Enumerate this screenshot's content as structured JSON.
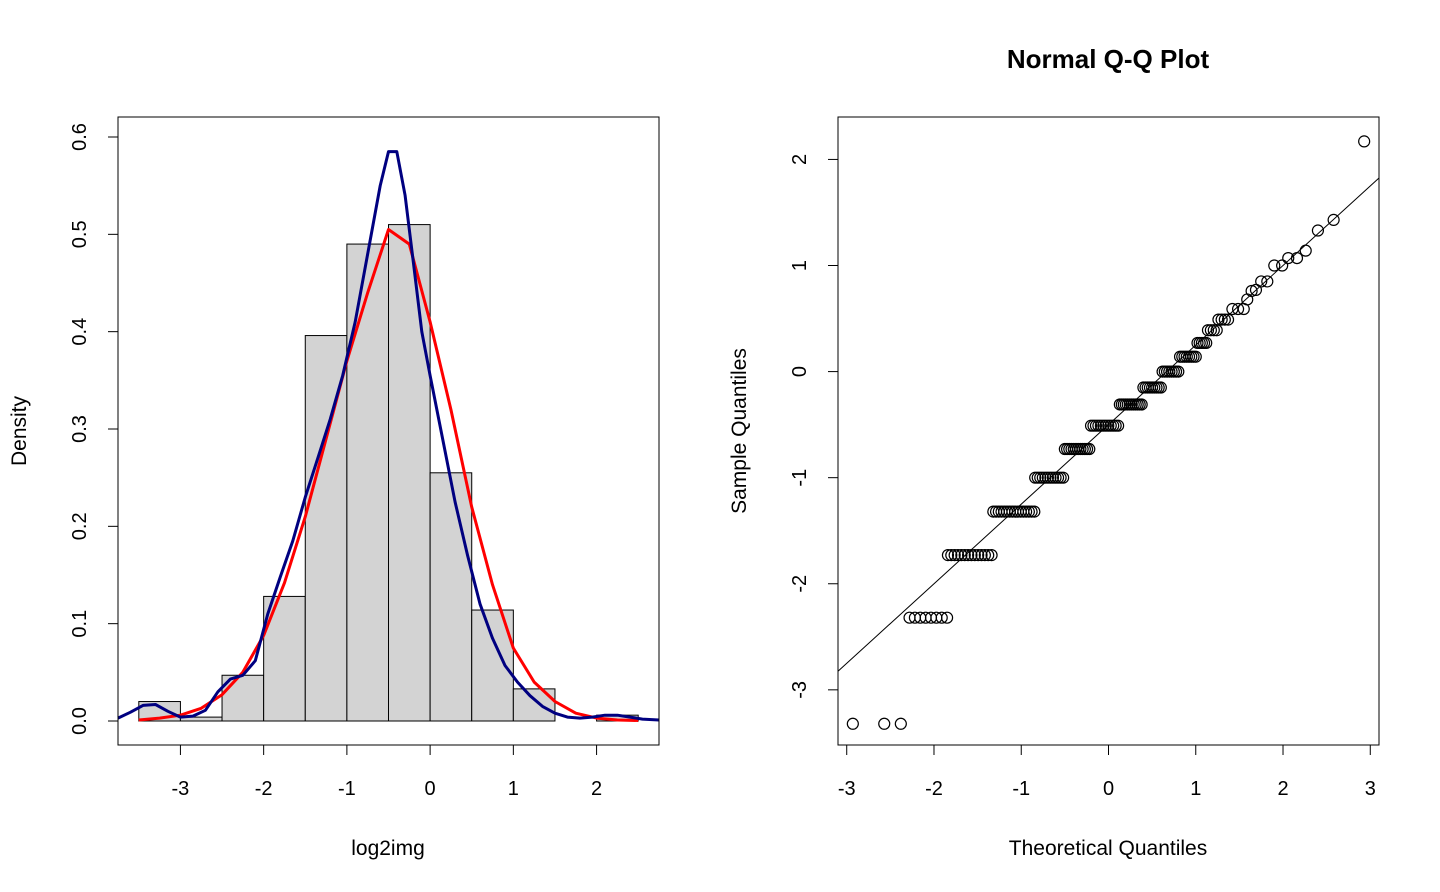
{
  "chart_data": [
    {
      "type": "bar",
      "subtype": "histogram-with-density",
      "title": "",
      "xlabel": "log2img",
      "ylabel": "Density",
      "xlim": [
        -3.75,
        2.75
      ],
      "ylim": [
        0,
        0.6
      ],
      "x_ticks": [
        -3,
        -2,
        -1,
        0,
        1,
        2
      ],
      "x_tick_labels": [
        "-3",
        "-2",
        "-1",
        "0",
        "1",
        "2"
      ],
      "y_ticks": [
        0,
        0.1,
        0.2,
        0.3,
        0.4,
        0.5,
        0.6
      ],
      "y_tick_labels": [
        "0.0",
        "0.1",
        "0.2",
        "0.3",
        "0.4",
        "0.5",
        "0.6"
      ],
      "bin_edges": [
        -3.5,
        -3.0,
        -2.5,
        -2.0,
        -1.5,
        -1.0,
        -0.5,
        0.0,
        0.5,
        1.0,
        1.5,
        2.0,
        2.5
      ],
      "values": [
        0.02,
        0.004,
        0.047,
        0.128,
        0.396,
        0.49,
        0.51,
        0.255,
        0.114,
        0.033,
        0.0,
        0.006
      ],
      "bar_color": "#d3d3d3",
      "grid": false,
      "series": [
        {
          "kind": "line",
          "color": "#ff0000",
          "x": [
            -3.5,
            -3.25,
            -3.0,
            -2.75,
            -2.5,
            -2.25,
            -2.0,
            -1.75,
            -1.5,
            -1.25,
            -1.0,
            -0.75,
            -0.5,
            -0.25,
            0.0,
            0.25,
            0.5,
            0.75,
            1.0,
            1.25,
            1.5,
            1.75,
            2.0,
            2.25,
            2.5
          ],
          "y": [
            0.001,
            0.003,
            0.006,
            0.013,
            0.027,
            0.05,
            0.088,
            0.142,
            0.21,
            0.29,
            0.37,
            0.44,
            0.505,
            0.49,
            0.41,
            0.32,
            0.22,
            0.14,
            0.075,
            0.04,
            0.02,
            0.008,
            0.003,
            0.001,
            0.0005
          ]
        },
        {
          "kind": "line",
          "color": "#000080",
          "x": [
            -3.75,
            -3.6,
            -3.45,
            -3.3,
            -3.15,
            -3.0,
            -2.85,
            -2.7,
            -2.55,
            -2.4,
            -2.25,
            -2.1,
            -1.95,
            -1.8,
            -1.65,
            -1.5,
            -1.35,
            -1.2,
            -1.05,
            -0.9,
            -0.75,
            -0.6,
            -0.5,
            -0.4,
            -0.3,
            -0.2,
            -0.1,
            0.0,
            0.15,
            0.3,
            0.45,
            0.6,
            0.75,
            0.9,
            1.05,
            1.2,
            1.35,
            1.5,
            1.65,
            1.8,
            1.95,
            2.1,
            2.25,
            2.4,
            2.55,
            2.75
          ],
          "y": [
            0.003,
            0.009,
            0.016,
            0.017,
            0.01,
            0.004,
            0.005,
            0.011,
            0.03,
            0.043,
            0.047,
            0.062,
            0.11,
            0.148,
            0.185,
            0.23,
            0.27,
            0.31,
            0.355,
            0.41,
            0.48,
            0.55,
            0.585,
            0.585,
            0.54,
            0.47,
            0.4,
            0.355,
            0.29,
            0.225,
            0.17,
            0.12,
            0.085,
            0.057,
            0.04,
            0.026,
            0.015,
            0.008,
            0.004,
            0.003,
            0.004,
            0.006,
            0.006,
            0.004,
            0.002,
            0.001
          ]
        }
      ]
    },
    {
      "type": "scatter",
      "subtype": "qq-plot",
      "title": "Normal Q-Q Plot",
      "xlabel": "Theoretical Quantiles",
      "ylabel": "Sample Quantiles",
      "xlim": [
        -3.1,
        3.1
      ],
      "ylim": [
        -3.52,
        2.4
      ],
      "x_ticks": [
        -3,
        -2,
        -1,
        0,
        1,
        2,
        3
      ],
      "x_tick_labels": [
        "-3",
        "-2",
        "-1",
        "0",
        "1",
        "2",
        "3"
      ],
      "y_ticks": [
        -3,
        -2,
        -1,
        0,
        1,
        2
      ],
      "y_tick_labels": [
        "-3",
        "-2",
        "-1",
        "0",
        "1",
        "2"
      ],
      "grid": false,
      "reference_line": {
        "intercept": -0.5,
        "slope": 0.75
      },
      "steps": [
        {
          "y": -2.32,
          "x_start": -2.28,
          "x_end": -1.85,
          "n": 8
        },
        {
          "y": -1.73,
          "x_start": -1.84,
          "x_end": -1.34,
          "n": 14
        },
        {
          "y": -1.32,
          "x_start": -1.32,
          "x_end": -0.85,
          "n": 16
        },
        {
          "y": -1.0,
          "x_start": -0.84,
          "x_end": -0.52,
          "n": 12
        },
        {
          "y": -0.73,
          "x_start": -0.5,
          "x_end": -0.22,
          "n": 12
        },
        {
          "y": -0.51,
          "x_start": -0.2,
          "x_end": 0.11,
          "n": 12
        },
        {
          "y": -0.31,
          "x_start": 0.13,
          "x_end": 0.38,
          "n": 12
        },
        {
          "y": -0.15,
          "x_start": 0.4,
          "x_end": 0.6,
          "n": 9
        },
        {
          "y": 0.0,
          "x_start": 0.62,
          "x_end": 0.8,
          "n": 8
        },
        {
          "y": 0.14,
          "x_start": 0.82,
          "x_end": 1.0,
          "n": 8
        },
        {
          "y": 0.27,
          "x_start": 1.02,
          "x_end": 1.12,
          "n": 5
        },
        {
          "y": 0.39,
          "x_start": 1.14,
          "x_end": 1.24,
          "n": 4
        },
        {
          "y": 0.49,
          "x_start": 1.26,
          "x_end": 1.37,
          "n": 4
        },
        {
          "y": 0.59,
          "x_start": 1.42,
          "x_end": 1.55,
          "n": 3
        }
      ],
      "points": [
        {
          "x": -2.93,
          "y": -3.32
        },
        {
          "x": -2.57,
          "y": -3.32
        },
        {
          "x": -2.38,
          "y": -3.32
        },
        {
          "x": 1.59,
          "y": 0.68
        },
        {
          "x": 1.64,
          "y": 0.76
        },
        {
          "x": 1.69,
          "y": 0.77
        },
        {
          "x": 1.75,
          "y": 0.85
        },
        {
          "x": 1.82,
          "y": 0.85
        },
        {
          "x": 1.9,
          "y": 1.0
        },
        {
          "x": 1.99,
          "y": 1.0
        },
        {
          "x": 2.06,
          "y": 1.07
        },
        {
          "x": 2.16,
          "y": 1.07
        },
        {
          "x": 2.26,
          "y": 1.14
        },
        {
          "x": 2.4,
          "y": 1.33
        },
        {
          "x": 2.58,
          "y": 1.43
        },
        {
          "x": 2.93,
          "y": 2.17
        }
      ]
    }
  ]
}
